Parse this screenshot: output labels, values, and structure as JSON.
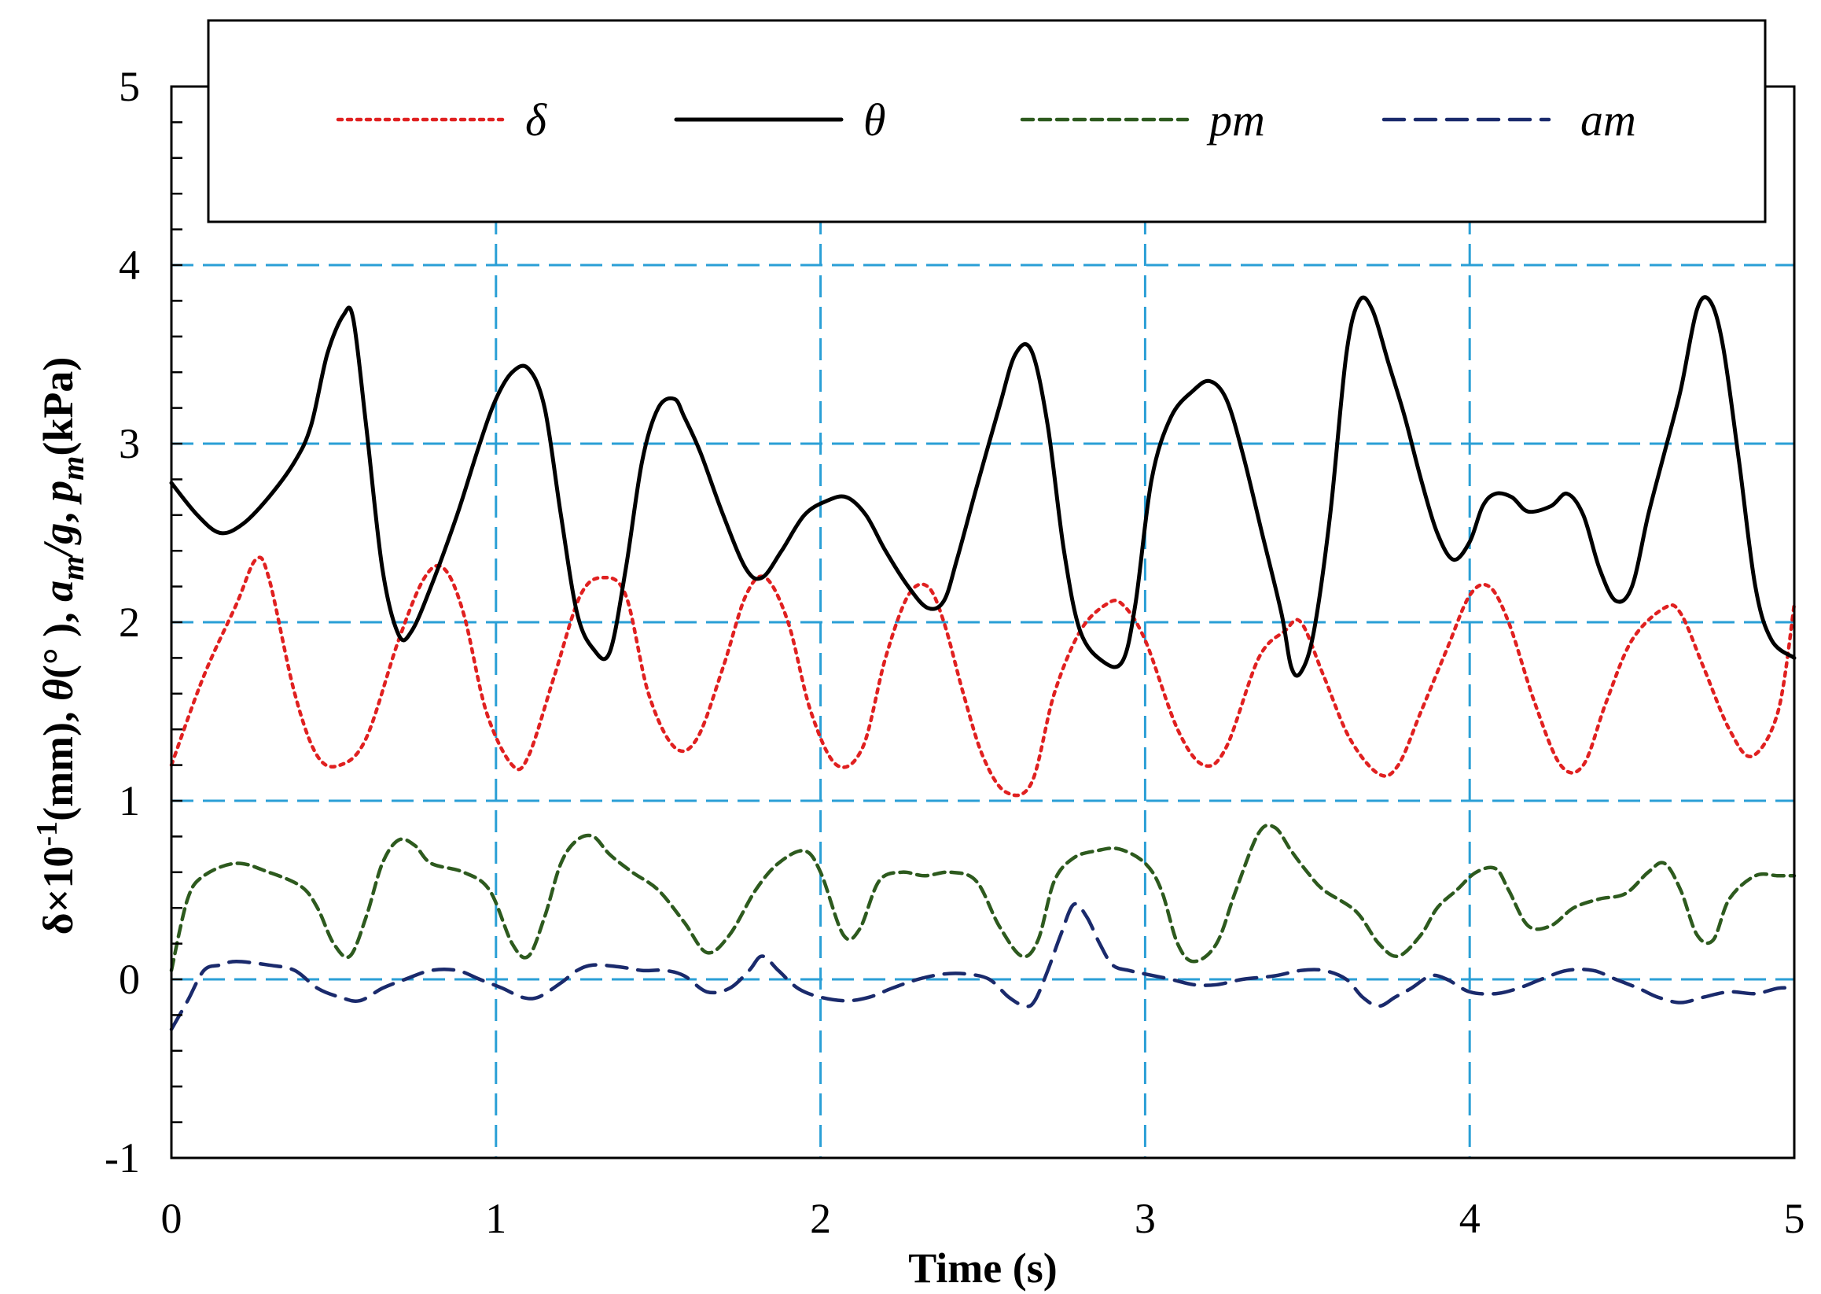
{
  "chart_data": {
    "type": "line",
    "title": "",
    "xlabel": "Time (s)",
    "ylabel_parts": [
      "δ×10",
      "-1",
      "(mm), ",
      "θ",
      "(° ), ",
      "a",
      "m",
      "/",
      "g",
      ", ",
      "p",
      "m",
      "(kPa)"
    ],
    "xlim": [
      0,
      5
    ],
    "ylim": [
      -1,
      5
    ],
    "xticks": [
      0,
      1,
      2,
      3,
      4,
      5
    ],
    "yticks": [
      -1,
      0,
      1,
      2,
      3,
      4,
      5
    ],
    "xtick_labels": [
      "0",
      "1",
      "2",
      "3",
      "4",
      "5"
    ],
    "ytick_labels": [
      "-1",
      "0",
      "1",
      "2",
      "3",
      "4",
      "5"
    ],
    "grid": true,
    "legend_position": "top",
    "series": [
      {
        "name": "δ",
        "color": "#e02020",
        "style": "dotted",
        "x": [
          0,
          0.1,
          0.2,
          0.26,
          0.3,
          0.38,
          0.45,
          0.52,
          0.6,
          0.7,
          0.78,
          0.84,
          0.9,
          0.97,
          1.05,
          1.1,
          1.18,
          1.26,
          1.33,
          1.4,
          1.47,
          1.55,
          1.62,
          1.7,
          1.77,
          1.83,
          1.9,
          1.97,
          2.05,
          2.13,
          2.2,
          2.27,
          2.33,
          2.38,
          2.44,
          2.5,
          2.57,
          2.65,
          2.72,
          2.8,
          2.88,
          2.93,
          3.0,
          3.1,
          3.18,
          3.25,
          3.35,
          3.43,
          3.48,
          3.55,
          3.63,
          3.72,
          3.78,
          3.85,
          3.93,
          4.0,
          4.06,
          4.12,
          4.2,
          4.28,
          4.35,
          4.42,
          4.5,
          4.6,
          4.65,
          4.72,
          4.8,
          4.87,
          4.95,
          5.0
        ],
        "values": [
          1.2,
          1.7,
          2.1,
          2.35,
          2.25,
          1.6,
          1.25,
          1.2,
          1.35,
          1.9,
          2.25,
          2.3,
          2.05,
          1.5,
          1.2,
          1.25,
          1.7,
          2.15,
          2.25,
          2.15,
          1.6,
          1.3,
          1.35,
          1.75,
          2.15,
          2.25,
          2.0,
          1.5,
          1.2,
          1.3,
          1.8,
          2.15,
          2.2,
          2.0,
          1.6,
          1.25,
          1.05,
          1.1,
          1.6,
          1.95,
          2.1,
          2.1,
          1.9,
          1.4,
          1.2,
          1.3,
          1.8,
          1.95,
          2.0,
          1.7,
          1.35,
          1.15,
          1.2,
          1.5,
          1.85,
          2.15,
          2.2,
          2.0,
          1.55,
          1.2,
          1.2,
          1.55,
          1.9,
          2.08,
          2.05,
          1.75,
          1.4,
          1.25,
          1.5,
          2.1
        ]
      },
      {
        "name": "θ",
        "color": "#000000",
        "style": "solid",
        "x": [
          0,
          0.08,
          0.15,
          0.22,
          0.3,
          0.38,
          0.43,
          0.48,
          0.53,
          0.56,
          0.6,
          0.65,
          0.7,
          0.74,
          0.8,
          0.88,
          0.95,
          1.0,
          1.05,
          1.1,
          1.15,
          1.2,
          1.25,
          1.3,
          1.35,
          1.4,
          1.45,
          1.5,
          1.55,
          1.58,
          1.63,
          1.7,
          1.77,
          1.82,
          1.88,
          1.95,
          2.02,
          2.08,
          2.14,
          2.2,
          2.27,
          2.33,
          2.38,
          2.42,
          2.48,
          2.55,
          2.6,
          2.65,
          2.7,
          2.75,
          2.8,
          2.87,
          2.93,
          2.97,
          3.02,
          3.08,
          3.15,
          3.2,
          3.25,
          3.3,
          3.36,
          3.42,
          3.45,
          3.48,
          3.52,
          3.57,
          3.62,
          3.66,
          3.7,
          3.75,
          3.8,
          3.85,
          3.9,
          3.95,
          4.0,
          4.04,
          4.08,
          4.13,
          4.18,
          4.25,
          4.3,
          4.35,
          4.4,
          4.45,
          4.5,
          4.55,
          4.6,
          4.65,
          4.7,
          4.74,
          4.78,
          4.83,
          4.88,
          4.93,
          5.0
        ],
        "values": [
          2.78,
          2.6,
          2.5,
          2.55,
          2.7,
          2.9,
          3.1,
          3.5,
          3.72,
          3.7,
          3.1,
          2.3,
          1.93,
          1.95,
          2.2,
          2.6,
          3.0,
          3.25,
          3.4,
          3.42,
          3.2,
          2.6,
          2.05,
          1.85,
          1.83,
          2.3,
          2.9,
          3.2,
          3.25,
          3.15,
          2.95,
          2.6,
          2.3,
          2.25,
          2.4,
          2.6,
          2.68,
          2.7,
          2.6,
          2.4,
          2.2,
          2.08,
          2.12,
          2.35,
          2.75,
          3.2,
          3.5,
          3.52,
          3.1,
          2.4,
          1.95,
          1.78,
          1.78,
          2.1,
          2.8,
          3.15,
          3.3,
          3.35,
          3.25,
          2.95,
          2.5,
          2.05,
          1.75,
          1.72,
          1.95,
          2.6,
          3.5,
          3.8,
          3.75,
          3.45,
          3.15,
          2.8,
          2.5,
          2.35,
          2.45,
          2.65,
          2.72,
          2.7,
          2.62,
          2.65,
          2.72,
          2.6,
          2.3,
          2.12,
          2.2,
          2.6,
          2.95,
          3.3,
          3.75,
          3.8,
          3.55,
          2.9,
          2.2,
          1.9,
          1.8
        ]
      },
      {
        "name": "pm",
        "color": "#2d5a1e",
        "style": "dashed",
        "x": [
          0,
          0.05,
          0.1,
          0.2,
          0.3,
          0.4,
          0.45,
          0.5,
          0.55,
          0.6,
          0.65,
          0.7,
          0.75,
          0.8,
          0.9,
          0.98,
          1.05,
          1.1,
          1.15,
          1.2,
          1.25,
          1.3,
          1.35,
          1.42,
          1.5,
          1.58,
          1.65,
          1.72,
          1.8,
          1.87,
          1.95,
          2.0,
          2.07,
          2.12,
          2.18,
          2.25,
          2.32,
          2.4,
          2.48,
          2.55,
          2.62,
          2.67,
          2.72,
          2.78,
          2.85,
          2.92,
          3.0,
          3.05,
          3.1,
          3.15,
          3.22,
          3.28,
          3.35,
          3.4,
          3.45,
          3.5,
          3.55,
          3.65,
          3.72,
          3.78,
          3.85,
          3.9,
          3.96,
          4.02,
          4.08,
          4.12,
          4.18,
          4.25,
          4.32,
          4.4,
          4.48,
          4.55,
          4.6,
          4.65,
          4.7,
          4.75,
          4.8,
          4.88,
          4.95,
          5.0
        ],
        "values": [
          0.05,
          0.45,
          0.58,
          0.65,
          0.6,
          0.52,
          0.4,
          0.2,
          0.13,
          0.35,
          0.65,
          0.78,
          0.75,
          0.65,
          0.6,
          0.5,
          0.2,
          0.13,
          0.35,
          0.65,
          0.78,
          0.8,
          0.7,
          0.6,
          0.5,
          0.32,
          0.15,
          0.25,
          0.5,
          0.65,
          0.72,
          0.6,
          0.25,
          0.28,
          0.55,
          0.6,
          0.58,
          0.6,
          0.55,
          0.3,
          0.13,
          0.22,
          0.55,
          0.68,
          0.72,
          0.73,
          0.65,
          0.5,
          0.2,
          0.1,
          0.2,
          0.5,
          0.82,
          0.85,
          0.72,
          0.6,
          0.5,
          0.38,
          0.2,
          0.13,
          0.25,
          0.4,
          0.5,
          0.6,
          0.62,
          0.5,
          0.3,
          0.3,
          0.4,
          0.45,
          0.48,
          0.6,
          0.65,
          0.5,
          0.25,
          0.22,
          0.45,
          0.58,
          0.58,
          0.58
        ]
      },
      {
        "name": "am",
        "color": "#1a2a6c",
        "style": "dashed",
        "x": [
          0,
          0.05,
          0.1,
          0.15,
          0.2,
          0.3,
          0.38,
          0.45,
          0.52,
          0.58,
          0.65,
          0.72,
          0.8,
          0.88,
          0.95,
          1.02,
          1.08,
          1.13,
          1.2,
          1.25,
          1.3,
          1.38,
          1.45,
          1.52,
          1.58,
          1.65,
          1.72,
          1.78,
          1.82,
          1.87,
          1.93,
          2.0,
          2.08,
          2.15,
          2.22,
          2.3,
          2.38,
          2.45,
          2.52,
          2.58,
          2.63,
          2.66,
          2.7,
          2.74,
          2.78,
          2.82,
          2.86,
          2.9,
          2.95,
          3.0,
          3.08,
          3.15,
          3.22,
          3.3,
          3.4,
          3.48,
          3.55,
          3.62,
          3.67,
          3.72,
          3.77,
          3.82,
          3.88,
          3.93,
          4.0,
          4.08,
          4.15,
          4.22,
          4.3,
          4.38,
          4.45,
          4.52,
          4.58,
          4.65,
          4.72,
          4.8,
          4.88,
          4.95,
          5.0
        ],
        "values": [
          -0.28,
          -0.12,
          0.05,
          0.08,
          0.1,
          0.08,
          0.05,
          -0.05,
          -0.1,
          -0.12,
          -0.05,
          0.0,
          0.05,
          0.05,
          0.0,
          -0.05,
          -0.1,
          -0.1,
          -0.02,
          0.05,
          0.08,
          0.07,
          0.05,
          0.05,
          0.02,
          -0.07,
          -0.05,
          0.05,
          0.13,
          0.05,
          -0.05,
          -0.1,
          -0.12,
          -0.1,
          -0.05,
          0.0,
          0.03,
          0.03,
          0.0,
          -0.1,
          -0.15,
          -0.12,
          0.05,
          0.25,
          0.42,
          0.35,
          0.2,
          0.08,
          0.05,
          0.03,
          0.0,
          -0.03,
          -0.03,
          0.0,
          0.02,
          0.05,
          0.05,
          0.0,
          -0.1,
          -0.15,
          -0.1,
          -0.05,
          0.02,
          0.0,
          -0.07,
          -0.08,
          -0.05,
          0.0,
          0.05,
          0.05,
          0.0,
          -0.05,
          -0.1,
          -0.13,
          -0.1,
          -0.07,
          -0.08,
          -0.05,
          -0.05
        ]
      }
    ]
  }
}
